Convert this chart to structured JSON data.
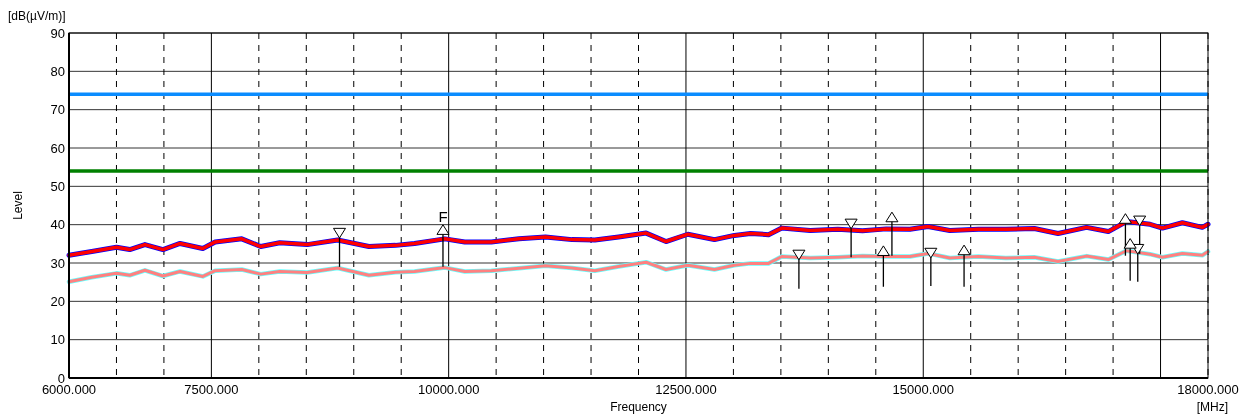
{
  "chart_data": {
    "type": "line",
    "xlabel": "Frequency",
    "ylabel": "Level",
    "annotations": [
      "[dB(µV/m)]",
      "[MHz]",
      {
        "text": "F",
        "x": 9940,
        "y": 38.4
      }
    ],
    "xlim": [
      6000,
      18000
    ],
    "ylim": [
      0,
      90
    ],
    "xticks": [
      {
        "value": 6000,
        "label": "6000.000"
      },
      {
        "value": 6500,
        "label": null
      },
      {
        "value": 7000,
        "label": null
      },
      {
        "value": 7500,
        "label": "7500.000"
      },
      {
        "value": 8000,
        "label": null
      },
      {
        "value": 8500,
        "label": null
      },
      {
        "value": 9000,
        "label": null
      },
      {
        "value": 9500,
        "label": null
      },
      {
        "value": 10000,
        "label": "10000.000"
      },
      {
        "value": 10500,
        "label": null
      },
      {
        "value": 11000,
        "label": null
      },
      {
        "value": 11500,
        "label": null
      },
      {
        "value": 12000,
        "label": null
      },
      {
        "value": 12500,
        "label": "12500.000"
      },
      {
        "value": 13000,
        "label": null
      },
      {
        "value": 13500,
        "label": null
      },
      {
        "value": 14000,
        "label": null
      },
      {
        "value": 14500,
        "label": null
      },
      {
        "value": 15000,
        "label": "15000.000"
      },
      {
        "value": 15500,
        "label": null
      },
      {
        "value": 16000,
        "label": null
      },
      {
        "value": 16500,
        "label": null
      },
      {
        "value": 17000,
        "label": null
      },
      {
        "value": 17500,
        "label": null
      },
      {
        "value": 18000,
        "label": "18000.000"
      }
    ],
    "yticks": [
      0,
      10,
      20,
      30,
      40,
      50,
      60,
      70,
      80,
      90
    ],
    "grid": true,
    "ref_lines": [
      {
        "axis": "y",
        "value": 74,
        "color": "#0a8cff"
      },
      {
        "axis": "y",
        "value": 54,
        "color": "#008000"
      }
    ],
    "x": [
      6000,
      6240,
      6500,
      6640,
      6800,
      6990,
      7170,
      7410,
      7540,
      7820,
      8020,
      8220,
      8510,
      8830,
      9160,
      9440,
      9640,
      9960,
      10170,
      10450,
      10740,
      11020,
      11300,
      11540,
      11790,
      12080,
      12290,
      12520,
      12800,
      13010,
      13180,
      13370,
      13510,
      13810,
      14100,
      14360,
      14610,
      14860,
      15050,
      15280,
      15580,
      15870,
      16170,
      16420,
      16720,
      16950,
      17140,
      17390,
      17520,
      17730,
      17940,
      18000
    ],
    "series": [
      {
        "color": "#0000ff",
        "values": [
          32,
          33,
          34.1,
          33.5,
          34.8,
          33.5,
          35.1,
          33.8,
          35.5,
          36.3,
          34.3,
          35.3,
          34.8,
          36,
          34.3,
          34.6,
          35.1,
          36.3,
          35.5,
          35.5,
          36.3,
          36.8,
          36.1,
          36,
          36.8,
          37.8,
          35.6,
          37.5,
          36.1,
          37.2,
          37.7,
          37.4,
          39.1,
          38.5,
          38.8,
          38.4,
          38.9,
          38.8,
          39.5,
          38.5,
          38.8,
          38.8,
          39,
          37.7,
          39.3,
          38.2,
          40.8,
          40.1,
          39.1,
          40.5,
          39.3,
          40.1
        ]
      },
      {
        "color": "#ff0000",
        "values": [
          32,
          33,
          34.1,
          33.5,
          34.8,
          33.5,
          35.1,
          33.8,
          35.5,
          36.3,
          34.3,
          35.3,
          34.8,
          36,
          34.3,
          34.6,
          35.1,
          36.3,
          35.5,
          35.5,
          36.3,
          36.8,
          36.1,
          36,
          36.8,
          37.8,
          35.6,
          37.5,
          36.1,
          37.2,
          37.7,
          37.4,
          39.1,
          38.5,
          38.8,
          38.4,
          38.9,
          38.8,
          39.5,
          38.5,
          38.8,
          38.8,
          39,
          37.7,
          39.3,
          38.2,
          40.8,
          40.1,
          39.1,
          40.5,
          39.3,
          40.1
        ]
      },
      {
        "color": "#66ffff",
        "values": [
          25.1,
          26.3,
          27.3,
          26.8,
          28.1,
          26.6,
          27.8,
          26.5,
          28,
          28.3,
          27.1,
          27.8,
          27.5,
          28.7,
          26.8,
          27.6,
          27.8,
          28.8,
          27.8,
          28,
          28.6,
          29.3,
          28.7,
          28,
          29.1,
          30.2,
          28.3,
          29.4,
          28.3,
          29.4,
          29.9,
          29.9,
          31.7,
          31.3,
          31.5,
          31.8,
          31.7,
          31.7,
          32.5,
          31.3,
          31.7,
          31.3,
          31.5,
          30.4,
          31.8,
          30.9,
          33.2,
          32.3,
          31.5,
          32.5,
          32,
          33
        ]
      },
      {
        "color": "#ff8080",
        "values": [
          25.1,
          26.3,
          27.3,
          26.8,
          28.1,
          26.6,
          27.8,
          26.5,
          28,
          28.3,
          27.1,
          27.8,
          27.5,
          28.7,
          26.8,
          27.6,
          27.8,
          28.8,
          27.8,
          28,
          28.6,
          29.3,
          28.7,
          28,
          29.1,
          30.2,
          28.3,
          29.4,
          28.3,
          29.4,
          29.9,
          29.9,
          31.7,
          31.3,
          31.5,
          31.8,
          31.7,
          31.7,
          32.5,
          31.3,
          31.7,
          31.3,
          31.5,
          30.4,
          31.8,
          30.9,
          33.2,
          32.3,
          31.5,
          32.5,
          32,
          33
        ]
      },
      {
        "type": "scatter",
        "marker": "triangle-down",
        "color": "#000000",
        "x": [
          8850,
          13690,
          14240,
          15080,
          17260,
          17280
        ],
        "values": [
          38.1,
          32.4,
          40.5,
          32.9,
          33.9,
          41.3
        ],
        "errors": [
          [
            29,
            38.1
          ],
          [
            23.3,
            32.4
          ],
          [
            31.5,
            40.5
          ],
          [
            24,
            32.9
          ],
          [
            25.1,
            33.9
          ],
          [
            32.4,
            41.3
          ]
        ]
      },
      {
        "type": "scatter",
        "marker": "triangle",
        "color": "#000000",
        "x": [
          9940,
          14580,
          14670,
          15430,
          17130,
          17180
        ],
        "values": [
          38.4,
          32.9,
          41.7,
          33.1,
          41.3,
          34.8
        ],
        "errors": [
          [
            29,
            38.4
          ],
          [
            23.8,
            32.9
          ],
          [
            31.9,
            41.7
          ],
          [
            23.8,
            33.1
          ],
          [
            31.9,
            41.3
          ],
          [
            25.4,
            34.8
          ]
        ]
      }
    ]
  }
}
